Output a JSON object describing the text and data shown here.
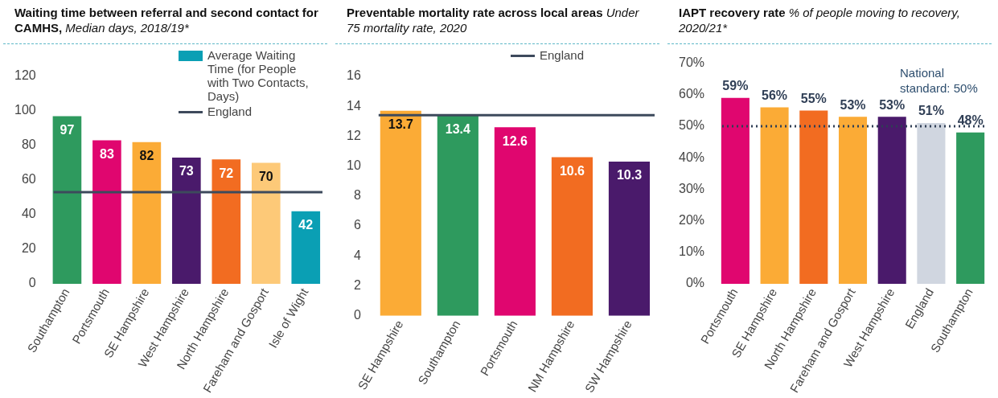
{
  "chart_data": [
    {
      "type": "bar",
      "title": "Waiting time between referral and second contact for CAMHS,",
      "subtitle": "Median days, 2018/19*",
      "categories": [
        "Southampton",
        "Portsmouth",
        "SE Hampshire",
        "West Hampshire",
        "North Hampshire",
        "Fareham and Gosport",
        "Isle of Wight"
      ],
      "series": [
        {
          "name": "Average Waiting Time (for People with Two Contacts, Days)",
          "color": "#0a9fb4",
          "colors": [
            "#2e9a5e",
            "#e0066f",
            "#fbab36",
            "#4a1a6b",
            "#f26c21",
            "#fdc978",
            "#0a9fb4"
          ],
          "values": [
            97,
            83,
            82,
            73,
            72,
            70,
            42
          ]
        }
      ],
      "ylim": [
        0,
        120
      ],
      "yticks": [
        0,
        20,
        40,
        60,
        80,
        100,
        120
      ],
      "grid": false,
      "legend": "top right",
      "data_labels": true,
      "ref_lines": [
        {
          "axis": "y",
          "value": 53,
          "label": "England",
          "color": "#3d4a5c",
          "line_style": "solid"
        }
      ]
    },
    {
      "type": "bar",
      "title": "Preventable mortality rate across local areas",
      "subtitle": "Under 75 mortality rate, 2020",
      "categories": [
        "SE Hampshire",
        "Southampton",
        "Portsmouth",
        "NM Hampshire",
        "SW Hampshire"
      ],
      "series": [
        {
          "colors": [
            "#fbab36",
            "#2e9a5e",
            "#e0066f",
            "#f26c21",
            "#4a1a6b"
          ],
          "values": [
            13.7,
            13.4,
            12.6,
            10.6,
            10.3
          ]
        }
      ],
      "ylim": [
        0,
        16
      ],
      "yticks": [
        0,
        2,
        4,
        6,
        8,
        10,
        12,
        14,
        16
      ],
      "grid": false,
      "legend": "top right",
      "data_labels": true,
      "ref_lines": [
        {
          "axis": "y",
          "value": 13.4,
          "label": "England",
          "color": "#3d4a5c",
          "line_style": "solid"
        }
      ]
    },
    {
      "type": "bar",
      "title": "IAPT recovery rate",
      "subtitle": "% of people moving to recovery, 2020/21*",
      "categories": [
        "Portsmouth",
        "SE Hampshire",
        "North Hampshire",
        "Fareham and Gosport",
        "West Hampshire",
        "England",
        "Southampton"
      ],
      "series": [
        {
          "colors": [
            "#e0066f",
            "#fbab36",
            "#f26c21",
            "#fbab36",
            "#4a1a6b",
            "#d0d6e0",
            "#2e9a5e"
          ],
          "values": [
            59,
            56,
            55,
            53,
            53,
            51,
            48
          ],
          "value_labels": [
            "59%",
            "56%",
            "55%",
            "53%",
            "53%",
            "51%",
            "48%"
          ]
        }
      ],
      "ylim": [
        0,
        70
      ],
      "yticks": [
        {
          "value": 0,
          "label": "0%"
        },
        {
          "value": 10,
          "label": "10%"
        },
        {
          "value": 20,
          "label": "20%"
        },
        {
          "value": 30,
          "label": "30%"
        },
        {
          "value": 40,
          "label": "40%"
        },
        {
          "value": 50,
          "label": "50%"
        },
        {
          "value": 60,
          "label": "60%"
        },
        {
          "value": 70,
          "label": "70%"
        }
      ],
      "grid": false,
      "legend": false,
      "ref_lines": [
        {
          "axis": "y",
          "value": 50,
          "label": "National standard: 50%",
          "color": "#2f3e55",
          "line_style": "dotted"
        }
      ]
    }
  ]
}
